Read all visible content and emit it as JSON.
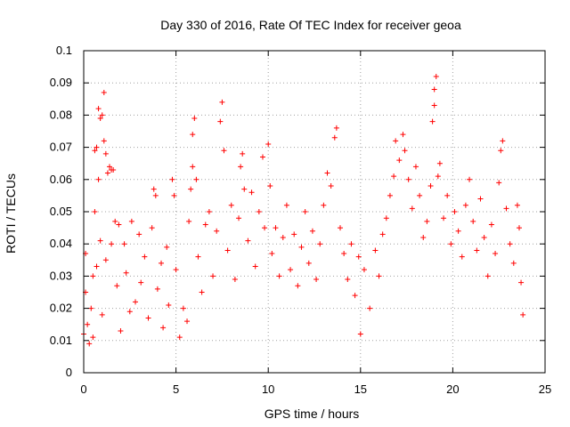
{
  "chart_data": {
    "type": "scatter",
    "title": "Day 330 of 2016, Rate Of TEC Index for receiver geoa",
    "xlabel": "GPS time / hours",
    "ylabel": "ROTI / TECUs",
    "xlim": [
      0,
      25
    ],
    "ylim": [
      0,
      0.1
    ],
    "xticks": [
      0,
      5,
      10,
      15,
      20,
      25
    ],
    "yticks": [
      0,
      0.01,
      0.02,
      0.03,
      0.04,
      0.05,
      0.06,
      0.07,
      0.08,
      0.09,
      0.1
    ],
    "xtick_labels": [
      "0",
      "5",
      "10",
      "15",
      "20",
      "25"
    ],
    "ytick_labels": [
      "0",
      "0.01",
      "0.02",
      "0.03",
      "0.04",
      "0.05",
      "0.06",
      "0.07",
      "0.08",
      "0.09",
      "0.1"
    ],
    "grid": true,
    "marker": "plus",
    "color": "#ff0000",
    "points": [
      [
        0.0,
        0.012
      ],
      [
        0.1,
        0.025
      ],
      [
        0.1,
        0.037
      ],
      [
        0.2,
        0.015
      ],
      [
        0.3,
        0.009
      ],
      [
        0.4,
        0.02
      ],
      [
        0.5,
        0.03
      ],
      [
        0.5,
        0.011
      ],
      [
        0.6,
        0.05
      ],
      [
        0.6,
        0.069
      ],
      [
        0.7,
        0.07
      ],
      [
        0.7,
        0.033
      ],
      [
        0.8,
        0.06
      ],
      [
        0.8,
        0.082
      ],
      [
        0.9,
        0.079
      ],
      [
        0.9,
        0.041
      ],
      [
        1.0,
        0.08
      ],
      [
        1.0,
        0.018
      ],
      [
        1.1,
        0.087
      ],
      [
        1.1,
        0.072
      ],
      [
        1.2,
        0.068
      ],
      [
        1.2,
        0.035
      ],
      [
        1.3,
        0.062
      ],
      [
        1.4,
        0.064
      ],
      [
        1.5,
        0.063
      ],
      [
        1.5,
        0.04
      ],
      [
        1.6,
        0.063
      ],
      [
        1.7,
        0.047
      ],
      [
        1.8,
        0.027
      ],
      [
        1.9,
        0.046
      ],
      [
        2.0,
        0.013
      ],
      [
        2.2,
        0.04
      ],
      [
        2.3,
        0.031
      ],
      [
        2.5,
        0.019
      ],
      [
        2.6,
        0.047
      ],
      [
        2.8,
        0.022
      ],
      [
        3.0,
        0.043
      ],
      [
        3.1,
        0.028
      ],
      [
        3.3,
        0.036
      ],
      [
        3.5,
        0.017
      ],
      [
        3.7,
        0.045
      ],
      [
        3.8,
        0.057
      ],
      [
        3.9,
        0.055
      ],
      [
        4.0,
        0.026
      ],
      [
        4.2,
        0.034
      ],
      [
        4.3,
        0.014
      ],
      [
        4.5,
        0.039
      ],
      [
        4.6,
        0.021
      ],
      [
        4.8,
        0.06
      ],
      [
        4.9,
        0.055
      ],
      [
        5.0,
        0.032
      ],
      [
        5.2,
        0.011
      ],
      [
        5.4,
        0.02
      ],
      [
        5.6,
        0.016
      ],
      [
        5.7,
        0.047
      ],
      [
        5.8,
        0.057
      ],
      [
        5.9,
        0.064
      ],
      [
        5.9,
        0.074
      ],
      [
        6.0,
        0.079
      ],
      [
        6.1,
        0.06
      ],
      [
        6.2,
        0.036
      ],
      [
        6.4,
        0.025
      ],
      [
        6.6,
        0.046
      ],
      [
        6.8,
        0.05
      ],
      [
        7.0,
        0.03
      ],
      [
        7.2,
        0.044
      ],
      [
        7.4,
        0.078
      ],
      [
        7.5,
        0.084
      ],
      [
        7.6,
        0.069
      ],
      [
        7.8,
        0.038
      ],
      [
        8.0,
        0.052
      ],
      [
        8.2,
        0.029
      ],
      [
        8.4,
        0.048
      ],
      [
        8.5,
        0.064
      ],
      [
        8.6,
        0.068
      ],
      [
        8.7,
        0.057
      ],
      [
        8.9,
        0.041
      ],
      [
        9.1,
        0.056
      ],
      [
        9.3,
        0.033
      ],
      [
        9.5,
        0.05
      ],
      [
        9.7,
        0.067
      ],
      [
        9.8,
        0.045
      ],
      [
        10.0,
        0.071
      ],
      [
        10.1,
        0.058
      ],
      [
        10.2,
        0.037
      ],
      [
        10.4,
        0.045
      ],
      [
        10.6,
        0.03
      ],
      [
        10.8,
        0.042
      ],
      [
        11.0,
        0.052
      ],
      [
        11.2,
        0.032
      ],
      [
        11.4,
        0.043
      ],
      [
        11.6,
        0.027
      ],
      [
        11.8,
        0.039
      ],
      [
        12.0,
        0.05
      ],
      [
        12.2,
        0.034
      ],
      [
        12.4,
        0.044
      ],
      [
        12.6,
        0.029
      ],
      [
        12.8,
        0.04
      ],
      [
        13.0,
        0.052
      ],
      [
        13.2,
        0.062
      ],
      [
        13.4,
        0.058
      ],
      [
        13.6,
        0.073
      ],
      [
        13.7,
        0.076
      ],
      [
        13.9,
        0.045
      ],
      [
        14.1,
        0.037
      ],
      [
        14.3,
        0.029
      ],
      [
        14.5,
        0.04
      ],
      [
        14.7,
        0.024
      ],
      [
        14.9,
        0.036
      ],
      [
        15.0,
        0.012
      ],
      [
        15.2,
        0.032
      ],
      [
        15.5,
        0.02
      ],
      [
        15.8,
        0.038
      ],
      [
        16.0,
        0.03
      ],
      [
        16.2,
        0.043
      ],
      [
        16.4,
        0.048
      ],
      [
        16.6,
        0.055
      ],
      [
        16.8,
        0.061
      ],
      [
        16.9,
        0.072
      ],
      [
        17.1,
        0.066
      ],
      [
        17.3,
        0.074
      ],
      [
        17.4,
        0.069
      ],
      [
        17.6,
        0.06
      ],
      [
        17.8,
        0.051
      ],
      [
        18.0,
        0.064
      ],
      [
        18.2,
        0.055
      ],
      [
        18.4,
        0.042
      ],
      [
        18.6,
        0.047
      ],
      [
        18.8,
        0.058
      ],
      [
        18.9,
        0.078
      ],
      [
        19.0,
        0.083
      ],
      [
        19.0,
        0.088
      ],
      [
        19.1,
        0.092
      ],
      [
        19.2,
        0.061
      ],
      [
        19.3,
        0.065
      ],
      [
        19.5,
        0.048
      ],
      [
        19.7,
        0.055
      ],
      [
        19.9,
        0.04
      ],
      [
        20.1,
        0.05
      ],
      [
        20.3,
        0.044
      ],
      [
        20.5,
        0.036
      ],
      [
        20.7,
        0.052
      ],
      [
        20.9,
        0.06
      ],
      [
        21.1,
        0.047
      ],
      [
        21.3,
        0.038
      ],
      [
        21.5,
        0.054
      ],
      [
        21.7,
        0.042
      ],
      [
        21.9,
        0.03
      ],
      [
        22.1,
        0.046
      ],
      [
        22.3,
        0.037
      ],
      [
        22.5,
        0.059
      ],
      [
        22.6,
        0.069
      ],
      [
        22.7,
        0.072
      ],
      [
        22.9,
        0.051
      ],
      [
        23.1,
        0.04
      ],
      [
        23.3,
        0.034
      ],
      [
        23.5,
        0.052
      ],
      [
        23.6,
        0.045
      ],
      [
        23.7,
        0.028
      ],
      [
        23.8,
        0.018
      ]
    ]
  }
}
